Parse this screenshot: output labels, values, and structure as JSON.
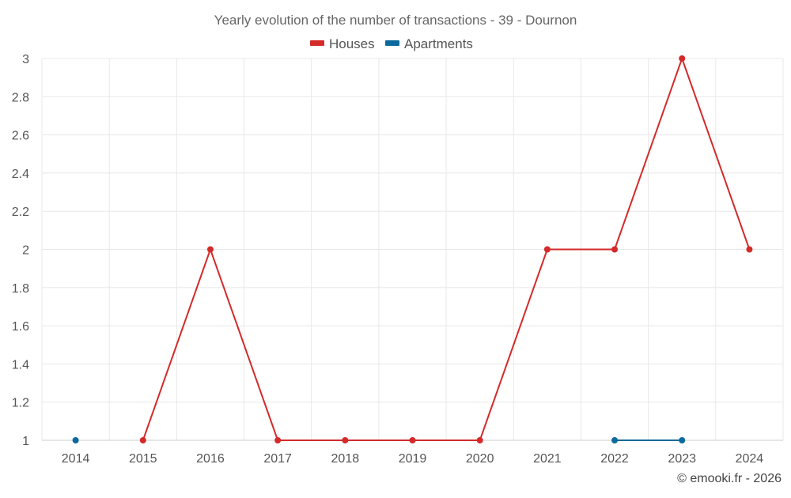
{
  "chart_data": {
    "type": "line",
    "title": "Yearly evolution of the number of transactions - 39 - Dournon",
    "xlabel": "",
    "ylabel": "",
    "x": [
      "2014",
      "2015",
      "2016",
      "2017",
      "2018",
      "2019",
      "2020",
      "2021",
      "2022",
      "2023",
      "2024"
    ],
    "ylim": [
      1,
      3
    ],
    "yticks": [
      "1",
      "1.2",
      "1.4",
      "1.6",
      "1.8",
      "2",
      "2.2",
      "2.4",
      "2.6",
      "2.8",
      "3"
    ],
    "grid": true,
    "legend_position": "top-center",
    "series": [
      {
        "name": "Houses",
        "color": "#d42a2a",
        "values": [
          null,
          1,
          2,
          1,
          1,
          1,
          1,
          2,
          2,
          3,
          2
        ]
      },
      {
        "name": "Apartments",
        "color": "#0a6a9e",
        "values": [
          1,
          null,
          null,
          null,
          null,
          null,
          null,
          null,
          1,
          1,
          null
        ]
      }
    ],
    "credit": "© emooki.fr - 2026"
  }
}
